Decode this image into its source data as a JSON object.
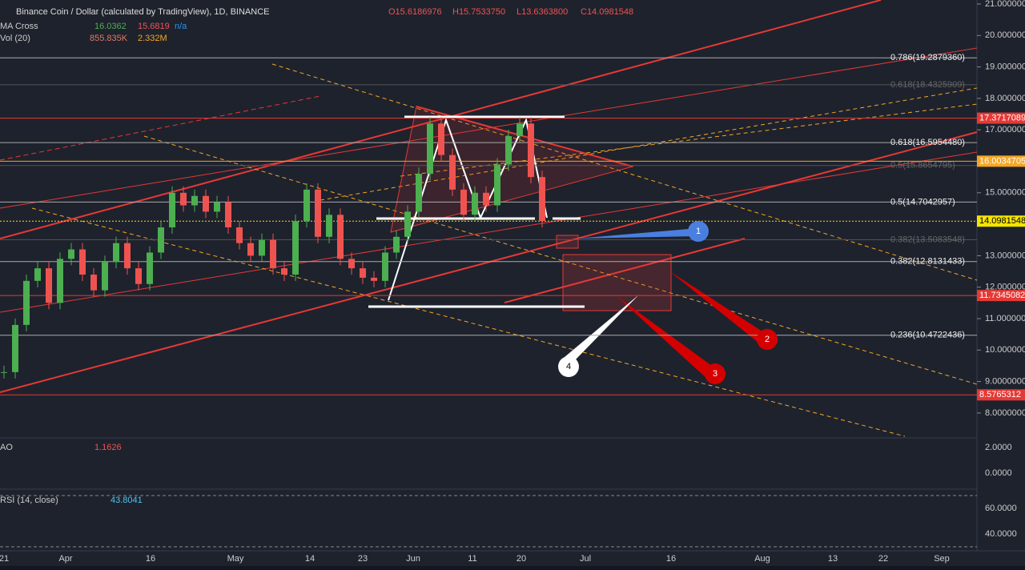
{
  "header": {
    "title": "Binance Coin / Dollar (calculated by TradingView), 1D, BINANCE",
    "open": "O15.6186976",
    "high": "H15.7533750",
    "low": "L13.6363800",
    "close": "C14.0981548"
  },
  "indicators": {
    "ma_name": "MA Cross",
    "ma_fast": "16.0362",
    "ma_slow": "15.6819",
    "ma_extra": "n/a",
    "vol_name": "Vol (20)",
    "vol_value": "855.835K",
    "vol_ma": "2.332M"
  },
  "price_axis": {
    "ticks": [
      {
        "value": 21,
        "label": "21.0000000"
      },
      {
        "value": 20,
        "label": "20.0000000"
      },
      {
        "value": 19,
        "label": "19.0000000"
      },
      {
        "value": 18,
        "label": "18.0000000"
      },
      {
        "value": 17,
        "label": "17.0000000"
      },
      {
        "value": 15,
        "label": "15.0000000"
      },
      {
        "value": 13,
        "label": "13.0000000"
      },
      {
        "value": 12,
        "label": "12.0000000"
      },
      {
        "value": 11,
        "label": "11.0000000"
      },
      {
        "value": 10,
        "label": "10.0000000"
      },
      {
        "value": 9,
        "label": "9.0000000"
      },
      {
        "value": 8,
        "label": "8.0000000"
      }
    ]
  },
  "levels": [
    {
      "value": 17.3717089,
      "label": "17.3717089",
      "color": "#e53935"
    },
    {
      "value": 16.0034705,
      "label": "16.0034705",
      "color": "#f5a623"
    },
    {
      "value": 14.0981548,
      "label": "14.0981548",
      "color": "#f5e400"
    },
    {
      "value": 11.7345082,
      "label": "11.7345082",
      "color": "#e53935"
    },
    {
      "value": 8.5765312,
      "label": "8.5765312",
      "color": "#e53935"
    }
  ],
  "fib": [
    {
      "value": 19.287936,
      "label": "0.786(19.2879360)",
      "faded": false
    },
    {
      "value": 18.4325909,
      "label": "0.618(18.4325909)",
      "faded": true
    },
    {
      "value": 16.595448,
      "label": "0.618(16.5954480)",
      "faded": false
    },
    {
      "value": 15.8654795,
      "label": "0.5(15.8654795)",
      "faded": true
    },
    {
      "value": 14.7042957,
      "label": "0.5(14.7042957)",
      "faded": false
    },
    {
      "value": 13.5083548,
      "label": "0.382(13.5083548)",
      "faded": true
    },
    {
      "value": 12.8131433,
      "label": "0.382(12.8131433)",
      "faded": false
    },
    {
      "value": 10.4722436,
      "label": "0.236(10.4722436)",
      "faded": false
    }
  ],
  "candles": {
    "closes": [
      9.3,
      10.8,
      12.2,
      12.6,
      11.5,
      12.9,
      13.2,
      12.4,
      11.9,
      12.8,
      13.4,
      12.6,
      12.1,
      13.1,
      13.9,
      15.0,
      14.6,
      14.9,
      14.4,
      14.7,
      13.9,
      13.4,
      13.0,
      13.5,
      12.6,
      12.4,
      14.1,
      15.1,
      13.6,
      14.3,
      12.9,
      12.6,
      12.3,
      12.2,
      13.1,
      13.6,
      14.4,
      15.6,
      17.2,
      16.2,
      15.1,
      14.3,
      15.0,
      14.6,
      15.9,
      16.8,
      17.2,
      15.5,
      14.1
    ]
  },
  "time_axis": [
    "21",
    "Apr",
    "16",
    "May",
    "14",
    "23",
    "Jun",
    "11",
    "20",
    "Jul",
    "16",
    "Aug",
    "13",
    "22",
    "Sep"
  ],
  "ao": {
    "name": "AO",
    "value": "1.1626",
    "ticks": [
      "2.0000",
      "0.0000"
    ]
  },
  "rsi": {
    "name": "RSI (14, close)",
    "value": "43.8041",
    "ticks": [
      "60.0000",
      "40.0000"
    ]
  },
  "annotations": [
    "1",
    "2",
    "3",
    "4"
  ]
}
